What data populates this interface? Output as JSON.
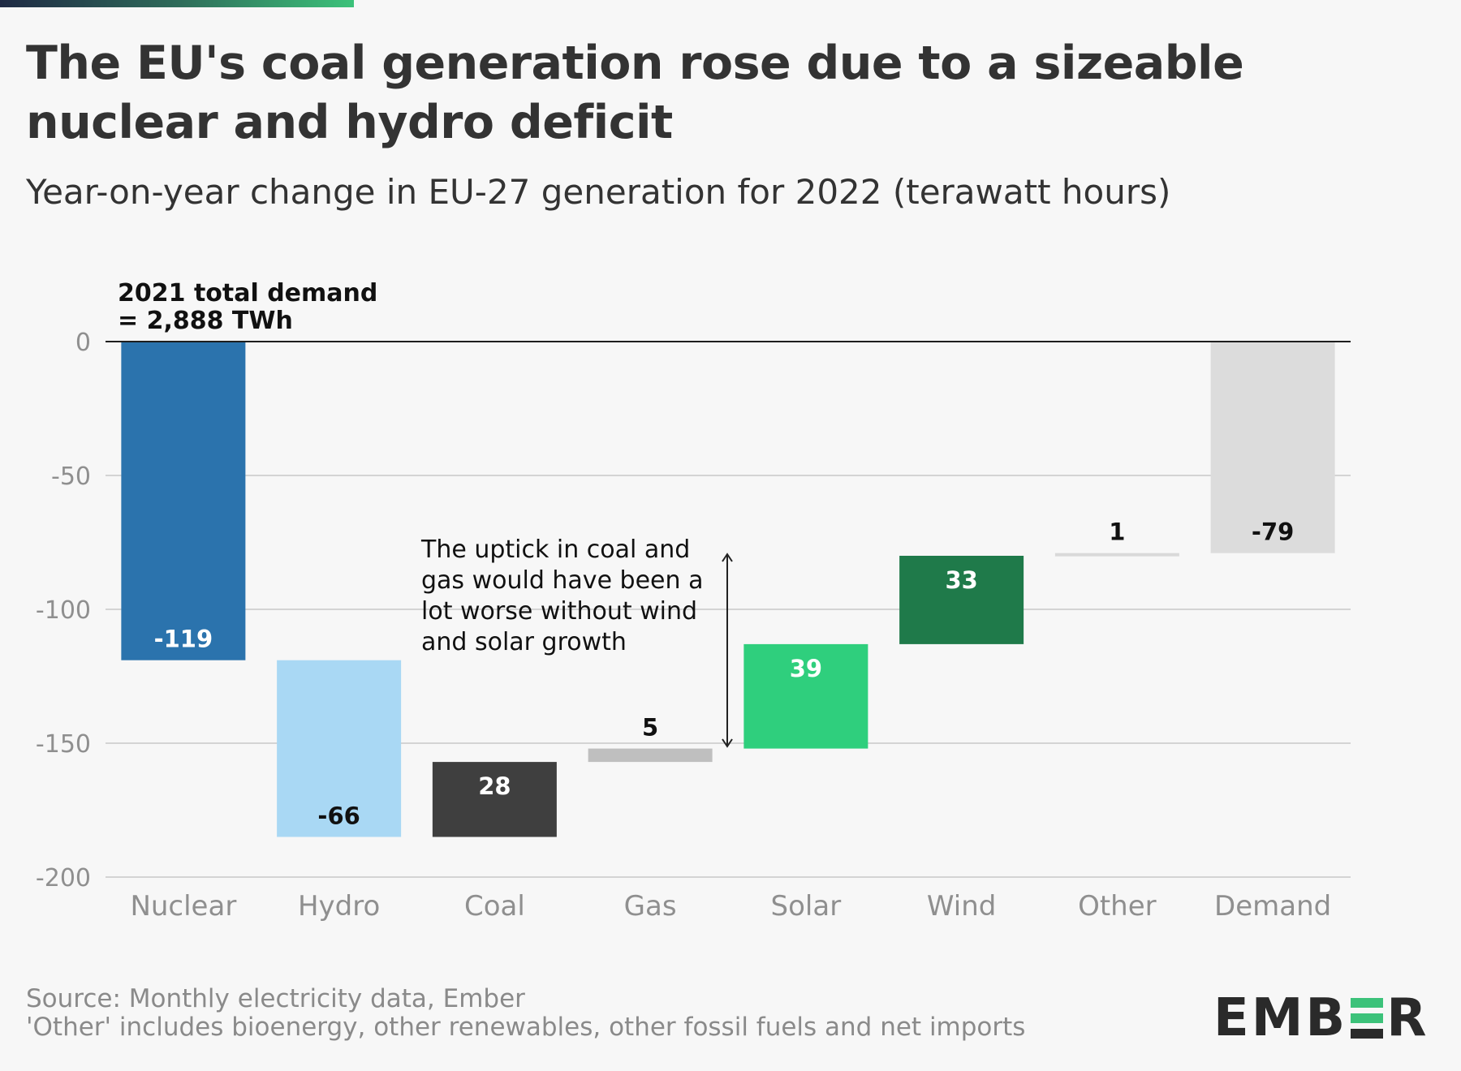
{
  "title": "The EU's coal generation rose due to a sizeable nuclear and hydro deficit",
  "subtitle": "Year-on-year change in EU-27 generation for 2022 (terawatt hours)",
  "chart_data": {
    "type": "bar",
    "subtype": "waterfall",
    "categories": [
      "Nuclear",
      "Hydro",
      "Coal",
      "Gas",
      "Solar",
      "Wind",
      "Other",
      "Demand"
    ],
    "values": [
      -119,
      -66,
      28,
      5,
      39,
      33,
      1,
      -79
    ],
    "value_labels": [
      "-119",
      "-66",
      "28",
      "5",
      "39",
      "33",
      "1",
      "-79"
    ],
    "colors": [
      "#2b73ad",
      "#a9d8f4",
      "#3f3f3f",
      "#bfbfbf",
      "#2fcf7d",
      "#1f7a4a",
      "#d9d9d9",
      "#dcdcdc"
    ],
    "label_colors": [
      "#ffffff",
      "#111111",
      "#ffffff",
      "#111111",
      "#ffffff",
      "#ffffff",
      "#111111",
      "#111111"
    ],
    "ylim": [
      -200,
      0
    ],
    "yticks": [
      0,
      -50,
      -100,
      -150,
      -200
    ],
    "ytick_labels": [
      "0",
      "-50",
      "-100",
      "-150",
      "-200"
    ],
    "grid": true,
    "xlabel": "",
    "ylabel": "",
    "baseline_annotation": [
      "2021 total demand",
      "= 2,888 TWh"
    ],
    "annotation": [
      "The uptick in coal and",
      "gas would have been a",
      "lot worse without wind",
      "and solar growth"
    ]
  },
  "footer": {
    "source": "Source: Monthly electricity data, Ember",
    "note": "'Other' includes bioenergy, other renewables, other fossil fuels and net imports"
  },
  "logo": {
    "text_left": "EMB",
    "text_right": "R",
    "accent": "#3cc27a"
  }
}
